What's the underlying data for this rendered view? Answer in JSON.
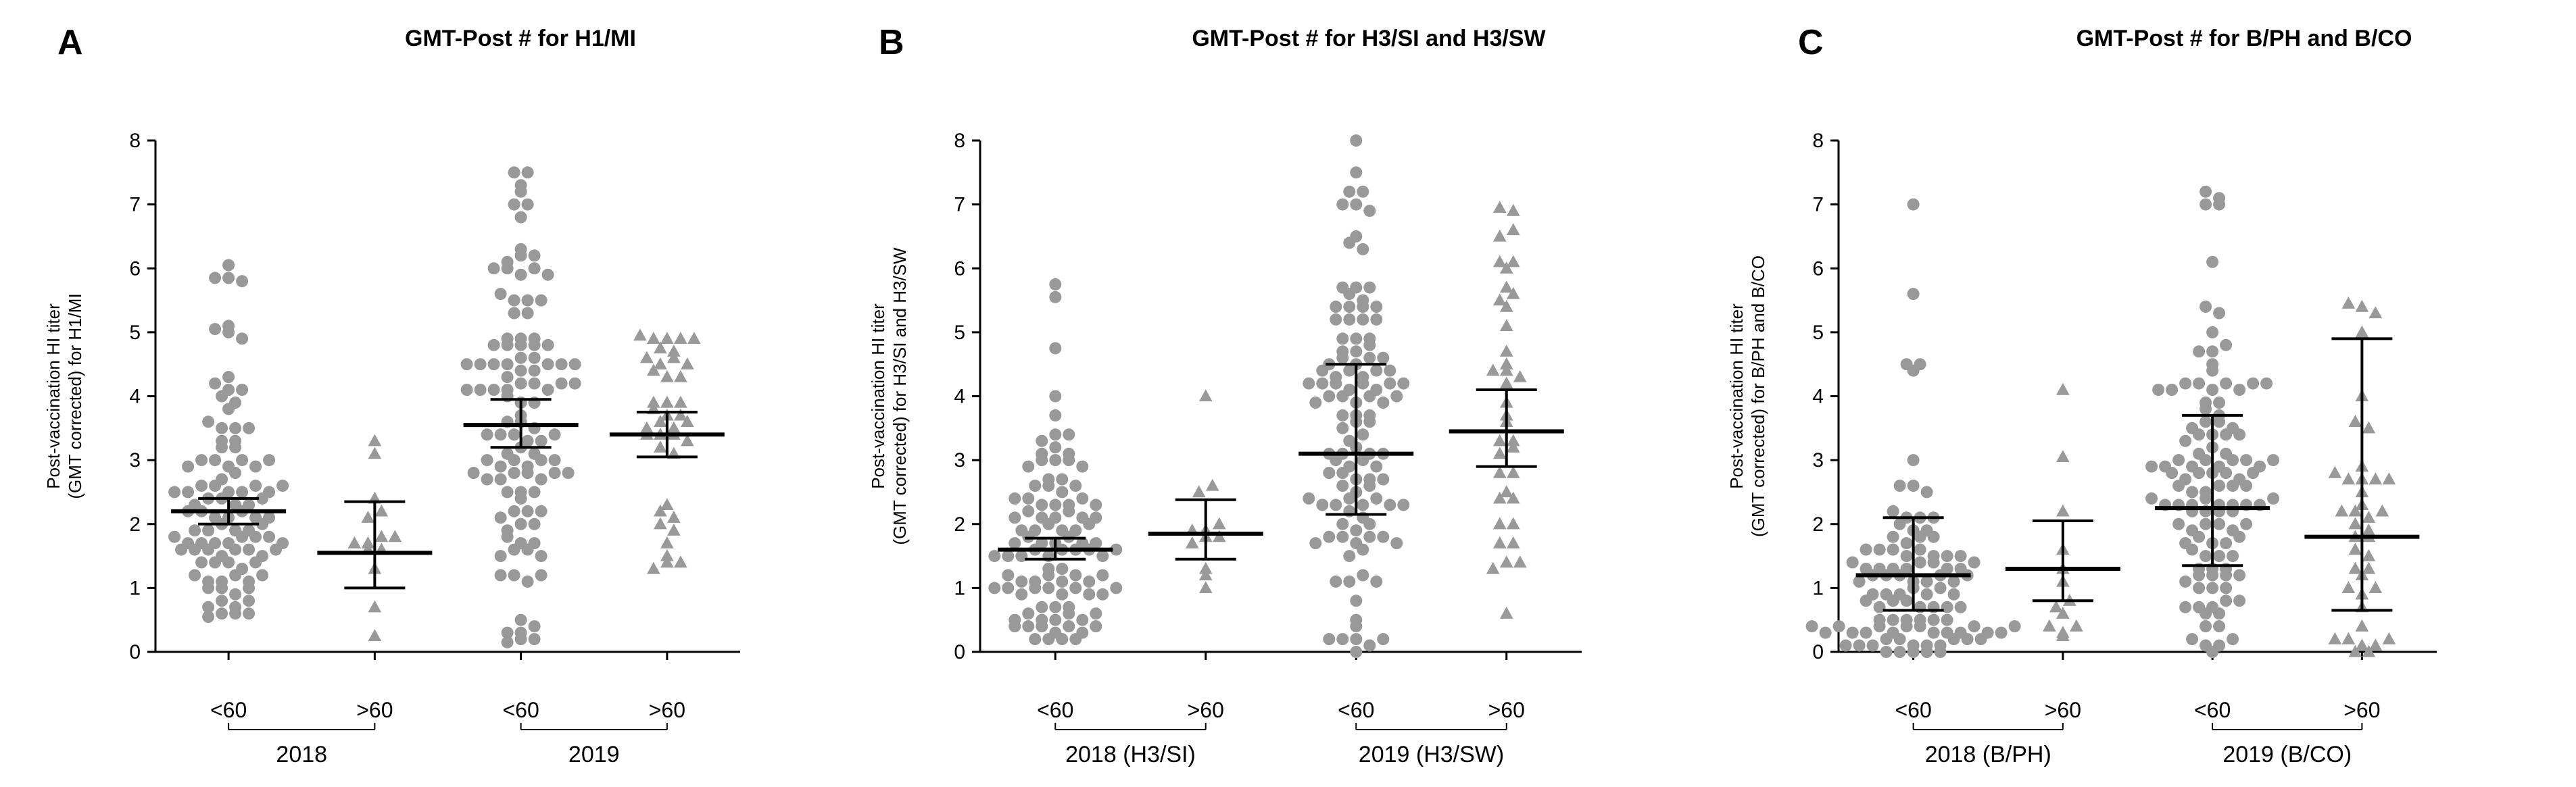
{
  "colors": {
    "points": "#999999",
    "axis": "#000000",
    "bars": "#000000"
  },
  "chart_data": [
    {
      "type": "scatter",
      "panel_letter": "A",
      "title": "GMT-Post # for H1/MI",
      "ylabel_line1": "Post-vaccination HI titer",
      "ylabel_line2": "(GMT corrected) for H1/MI",
      "ylim": [
        0,
        8
      ],
      "yticks": [
        "0",
        "1",
        "2",
        "3",
        "4",
        "5",
        "6",
        "7",
        "8"
      ],
      "grid": false,
      "categories": [
        "<60",
        ">60",
        "<60",
        ">60"
      ],
      "groups": [
        {
          "label": "2018",
          "categories": [
            0,
            1
          ]
        },
        {
          "label": "2019",
          "categories": [
            2,
            3
          ]
        }
      ],
      "series": [
        {
          "name": "<60",
          "marker": "circle",
          "n": 100,
          "center": 2.2,
          "ci": [
            2.0,
            2.4
          ],
          "ymin": 0.55,
          "ymax": 6.05,
          "top": [
            6.05,
            5.85,
            5.85,
            5.8,
            5.1,
            5.05,
            5.0
          ]
        },
        {
          "name": ">60",
          "marker": "triangle",
          "n": 14,
          "center": 1.55,
          "ci": [
            1.0,
            2.35
          ],
          "ymin": 0.25,
          "ymax": 3.3,
          "top": [
            3.3,
            3.1
          ]
        },
        {
          "name": "<60",
          "marker": "circle",
          "n": 110,
          "center": 3.55,
          "ci": [
            3.2,
            3.95
          ],
          "ymin": 0.15,
          "ymax": 7.5,
          "top": [
            7.5,
            7.5,
            7.3,
            7.0,
            7.0,
            6.3,
            6.0,
            6.0
          ]
        },
        {
          "name": ">60",
          "marker": "triangle",
          "n": 40,
          "center": 3.4,
          "ci": [
            3.05,
            3.75
          ],
          "ymin": 1.3,
          "ymax": 4.95,
          "top": [
            4.95,
            4.75,
            4.6,
            4.5
          ]
        }
      ]
    },
    {
      "type": "scatter",
      "panel_letter": "B",
      "title": "GMT-Post # for H3/SI and H3/SW",
      "ylabel_line1": "Post-vaccination HI titer",
      "ylabel_line2": "(GMT corrected) for H3/SI and H3/SW",
      "ylim": [
        0,
        8
      ],
      "yticks": [
        "0",
        "1",
        "2",
        "3",
        "4",
        "5",
        "6",
        "7",
        "8"
      ],
      "grid": false,
      "categories": [
        "<60",
        ">60",
        "<60",
        ">60"
      ],
      "groups": [
        {
          "label": "2018  (H3/SI)",
          "categories": [
            0,
            1
          ]
        },
        {
          "label": "2019  (H3/SW)",
          "categories": [
            2,
            3
          ]
        }
      ],
      "series": [
        {
          "name": "<60",
          "marker": "circle",
          "n": 100,
          "center": 1.6,
          "ci": [
            1.45,
            1.78
          ],
          "ymin": 0.2,
          "ymax": 5.75,
          "top": [
            5.75,
            5.55,
            4.75,
            4.0
          ]
        },
        {
          "name": ">60",
          "marker": "triangle",
          "n": 12,
          "center": 1.85,
          "ci": [
            1.45,
            2.38
          ],
          "ymin": 1.0,
          "ymax": 4.0,
          "top": [
            4.0,
            2.5
          ]
        },
        {
          "name": "<60",
          "marker": "circle",
          "n": 115,
          "center": 3.1,
          "ci": [
            2.15,
            4.5
          ],
          "ymin": 0.0,
          "ymax": 8.0,
          "top": [
            8.0,
            7.2,
            7.2,
            7.0,
            7.0,
            6.5
          ]
        },
        {
          "name": ">60",
          "marker": "triangle",
          "n": 38,
          "center": 3.45,
          "ci": [
            2.9,
            4.1
          ],
          "ymin": 0.6,
          "ymax": 6.95,
          "top": [
            6.95,
            6.5,
            6.1,
            5.5
          ]
        }
      ]
    },
    {
      "type": "scatter",
      "panel_letter": "C",
      "title": "GMT-Post # for B/PH and B/CO",
      "ylabel_line1": "Post-vaccination HI titer",
      "ylabel_line2": "(GMT corrected) for B/PH and B/CO",
      "ylim": [
        0,
        8
      ],
      "yticks": [
        "0",
        "1",
        "2",
        "3",
        "4",
        "5",
        "6",
        "7",
        "8"
      ],
      "grid": false,
      "categories": [
        "<60",
        ">60",
        "<60",
        ">60"
      ],
      "groups": [
        {
          "label": "2018  (B/PH)",
          "categories": [
            0,
            1
          ]
        },
        {
          "label": "2019  (B/CO)",
          "categories": [
            2,
            3
          ]
        }
      ],
      "series": [
        {
          "name": "<60",
          "marker": "circle",
          "n": 100,
          "center": 1.2,
          "ci": [
            0.65,
            2.1
          ],
          "ymin": 0.0,
          "ymax": 7.0,
          "top": [
            7.0,
            5.6,
            4.5,
            4.5,
            4.4
          ]
        },
        {
          "name": ">60",
          "marker": "triangle",
          "n": 13,
          "center": 1.3,
          "ci": [
            0.8,
            2.05
          ],
          "ymin": 0.25,
          "ymax": 4.1,
          "top": [
            4.1,
            3.05
          ]
        },
        {
          "name": "<60",
          "marker": "circle",
          "n": 115,
          "center": 2.25,
          "ci": [
            1.35,
            3.7
          ],
          "ymin": 0.0,
          "ymax": 7.2,
          "top": [
            7.2,
            7.1,
            7.0,
            7.0,
            6.1
          ]
        },
        {
          "name": ">60",
          "marker": "triangle",
          "n": 40,
          "center": 1.8,
          "ci": [
            0.65,
            4.9
          ],
          "ymin": 0.0,
          "ymax": 5.45,
          "top": [
            5.45,
            5.4,
            5.3,
            5.0
          ]
        }
      ]
    }
  ]
}
